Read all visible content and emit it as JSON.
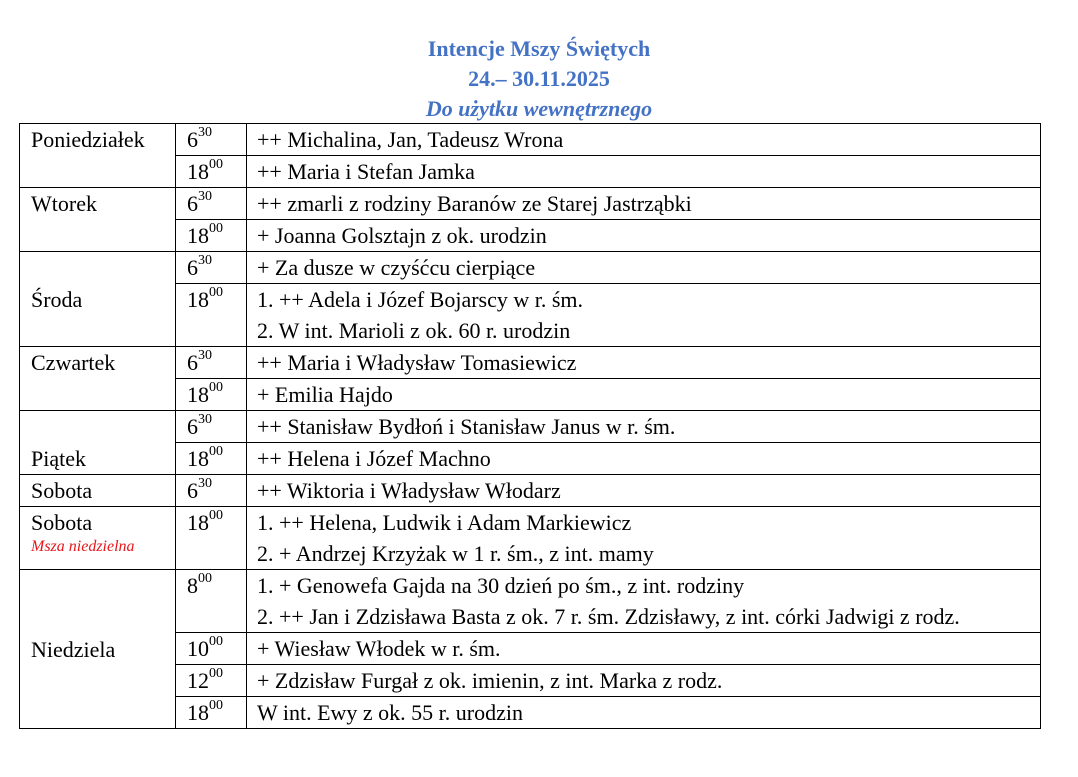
{
  "header": {
    "title": "Intencje Mszy Świętych",
    "dates": "24.– 30.11.2025",
    "subtitle": "Do użytku wewnętrznego",
    "color": "#4472c4"
  },
  "days": [
    {
      "name": "Poniedziałek",
      "masses": [
        {
          "hour": "6",
          "min": "30",
          "lines": [
            "++ Michalina, Jan, Tadeusz Wrona"
          ]
        },
        {
          "hour": "18",
          "min": "00",
          "lines": [
            "++ Maria i Stefan Jamka"
          ]
        }
      ]
    },
    {
      "name": "Wtorek",
      "masses": [
        {
          "hour": "6",
          "min": "30",
          "lines": [
            "++ zmarli z rodziny Baranów ze Starej Jastrząbki"
          ]
        },
        {
          "hour": "18",
          "min": "00",
          "lines": [
            "+ Joanna Golsztajn z ok. urodzin"
          ]
        }
      ]
    },
    {
      "name": "Środa",
      "masses": [
        {
          "hour": "6",
          "min": "30",
          "lines": [
            "+ Za dusze w czyśćcu cierpiące"
          ]
        },
        {
          "hour": "18",
          "min": "00",
          "lines": [
            "1. ++ Adela i Józef Bojarscy w r. śm.",
            "2. W int. Marioli z ok. 60 r. urodzin"
          ]
        }
      ]
    },
    {
      "name": "Czwartek",
      "masses": [
        {
          "hour": "6",
          "min": "30",
          "lines": [
            "++ Maria i Władysław Tomasiewicz"
          ]
        },
        {
          "hour": "18",
          "min": "00",
          "lines": [
            "+ Emilia Hajdo"
          ]
        }
      ]
    },
    {
      "name": "Piątek",
      "masses": [
        {
          "hour": "6",
          "min": "30",
          "lines": [
            "++ Stanisław Bydłoń i Stanisław Janus w r. śm."
          ]
        },
        {
          "hour": "18",
          "min": "00",
          "lines": [
            "++ Helena i Józef Machno"
          ]
        }
      ]
    },
    {
      "name": "Sobota",
      "masses": [
        {
          "hour": "6",
          "min": "30",
          "lines": [
            "++ Wiktoria i Władysław Włodarz"
          ]
        }
      ]
    },
    {
      "name": "Sobota",
      "note": "Msza niedzielna",
      "note_color": "#e8161b",
      "masses": [
        {
          "hour": "18",
          "min": "00",
          "lines": [
            "1. ++ Helena, Ludwik i Adam Markiewicz",
            "2. + Andrzej Krzyżak w 1 r. śm., z int. mamy"
          ]
        }
      ]
    },
    {
      "name": "Niedziela",
      "masses": [
        {
          "hour": "8",
          "min": "00",
          "lines": [
            "1. + Genowefa Gajda na 30 dzień po śm., z int. rodziny",
            "2. ++ Jan i Zdzisława Basta z ok. 7 r. śm. Zdzisławy, z int. córki Jadwigi z rodz."
          ]
        },
        {
          "hour": "10",
          "min": "00",
          "lines": [
            "+ Wiesław Włodek w r. śm."
          ]
        },
        {
          "hour": "12",
          "min": "00",
          "lines": [
            "+ Zdzisław Furgał z ok. imienin, z int. Marka z rodz."
          ]
        },
        {
          "hour": "18",
          "min": "00",
          "lines": [
            "W int. Ewy z ok. 55 r. urodzin"
          ]
        }
      ]
    }
  ]
}
